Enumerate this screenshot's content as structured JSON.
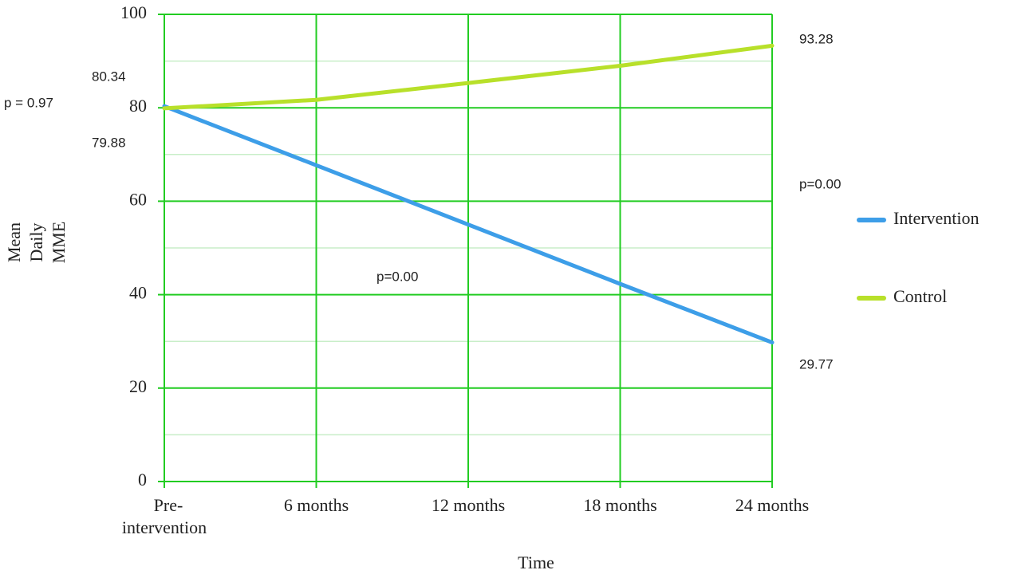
{
  "chart_data": {
    "type": "line",
    "y_label": "Mean Daily MME",
    "x_label": "Time",
    "categories": [
      "Pre-intervention",
      "6 months",
      "12 months",
      "18 months",
      "24 months"
    ],
    "series": [
      {
        "name": "Intervention",
        "color": "#3d9ee8",
        "values": [
          80.34,
          67.7,
          55,
          42.3,
          29.77
        ]
      },
      {
        "name": "Control",
        "color": "#b8e02a",
        "values": [
          79.88,
          81.7,
          85.3,
          89,
          93.28
        ]
      }
    ],
    "ylim": [
      0,
      100
    ],
    "yticks": [
      0,
      20,
      40,
      60,
      80,
      100
    ],
    "minor_yticks": [
      10,
      30,
      50,
      70,
      90
    ],
    "grid": true,
    "grid_color": "#22cc22",
    "minor_grid_color": "#c8eec8",
    "legend": "right",
    "annotations": [
      "p = 0.97",
      "p=0.00",
      "p=0.00"
    ]
  }
}
